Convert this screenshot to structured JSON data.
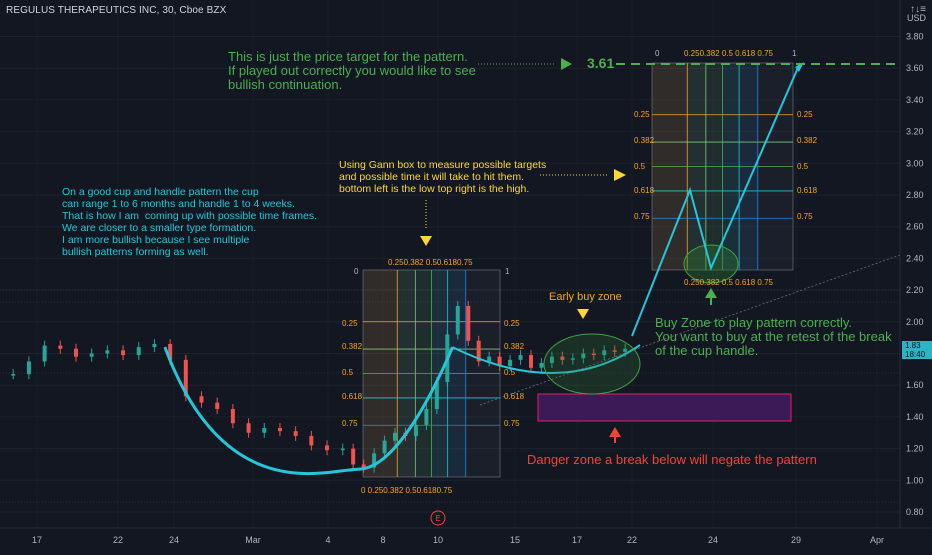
{
  "header": {
    "title": "REGULUS THERAPEUTICS INC, 30, Cboe BZX",
    "currency": "USD"
  },
  "price_tag": {
    "price": "1.83",
    "countdown": "18:40"
  },
  "colors": {
    "background": "#131722",
    "cup_curve": "#26c6da",
    "candle_up": "#26a69a",
    "candle_down": "#ef5350",
    "danger_zone": "#3b1a55",
    "danger_border": "#e91e63",
    "buy_zone_fill": "#2e7d32",
    "annotation_green": "#4caf50",
    "annotation_cyan": "#26c6da",
    "annotation_yellow": "#fdd835",
    "annotation_red": "#f44336",
    "annotation_orange": "#f5a623"
  },
  "annotations": {
    "price_target": "This is just the price target for the pattern.\nIf played out correctly you would like to see\nbullish continuation.",
    "target_value": "3.61",
    "gann_note": "Using Gann box to measure possible targets\nand possible time it will take to hit them.\nbottom left is the low top right is the high.",
    "cup_note": "On a good cup and handle pattern the cup\ncan range 1 to 6 months and handle 1 to 4 weeks.\nThat is how I am  coming up with possible time frames.\nWe are closer to a smaller type formation.\nI am more bullish because I see multiple\nbullish patterns forming as well.",
    "early_buy": "Early buy zone",
    "buy_zone": "Buy Zone to play pattern correctly.\nYou want to buy at the retest of the break\nof the cup handle.",
    "danger_zone": "Danger zone a break below will negate the pattern",
    "event_marker": "E"
  },
  "gann_levels": {
    "levels": [
      "0.25",
      "0.382",
      "0.5",
      "0.618",
      "0.75"
    ],
    "small_box_top": "0.250.382 0.50.6180.75",
    "small_box_bottom": "0 0.250.382 0.50.6180.75",
    "large_box_top": "0.250.382 0.5 0.618 0.75",
    "large_box_bottom": "0.250.382 0.5 0.618 0.75",
    "zero": "0",
    "one": "1"
  },
  "chart_data": {
    "type": "line",
    "title": "REGULUS THERAPEUTICS INC, 30, Cboe BZX",
    "xlabel": "",
    "ylabel": "",
    "ylim": [
      0.75,
      3.9
    ],
    "y_ticks": [
      3.8,
      3.6,
      3.4,
      3.2,
      3.0,
      2.8,
      2.6,
      2.4,
      2.2,
      2.0,
      1.8,
      1.6,
      1.4,
      1.2,
      1.0,
      0.8
    ],
    "x_tick_labels": [
      "17",
      "22",
      "24",
      "Mar",
      "4",
      "8",
      "10",
      "15",
      "17",
      "22",
      "24",
      "29",
      "Apr"
    ],
    "grid": true,
    "series": [
      {
        "values_x": [
          1,
          4,
          7,
          10,
          13,
          16,
          19,
          22,
          25,
          28,
          31,
          34,
          37,
          40,
          43,
          46,
          49,
          52,
          55,
          58,
          61,
          64,
          66,
          68,
          70,
          72,
          74,
          76,
          78,
          80,
          82,
          84,
          86,
          88,
          90,
          92,
          94,
          96,
          98,
          100,
          102,
          104,
          106,
          108,
          110,
          112,
          114,
          116,
          118
        ],
        "values_y": [
          1.67,
          1.75,
          1.85,
          1.83,
          1.78,
          1.8,
          1.82,
          1.79,
          1.84,
          1.86,
          1.76,
          1.53,
          1.49,
          1.45,
          1.36,
          1.3,
          1.33,
          1.31,
          1.28,
          1.22,
          1.19,
          1.2,
          1.1,
          1.08,
          1.17,
          1.25,
          1.3,
          1.28,
          1.35,
          1.45,
          1.62,
          1.92,
          2.1,
          1.88,
          1.75,
          1.78,
          1.72,
          1.76,
          1.79,
          1.71,
          1.74,
          1.78,
          1.76,
          1.77,
          1.8,
          1.79,
          1.82,
          1.81,
          1.83
        ]
      }
    ],
    "cup_curve": {
      "start": [
        30,
        1.84
      ],
      "bottom": [
        67,
        1.07
      ],
      "end": [
        85,
        1.84
      ]
    },
    "projection": [
      [
        108,
        1.83
      ],
      [
        121,
        2.8
      ],
      [
        124,
        2.4
      ],
      [
        134,
        3.61
      ]
    ],
    "price_target": 3.61,
    "current_price": 1.83
  }
}
